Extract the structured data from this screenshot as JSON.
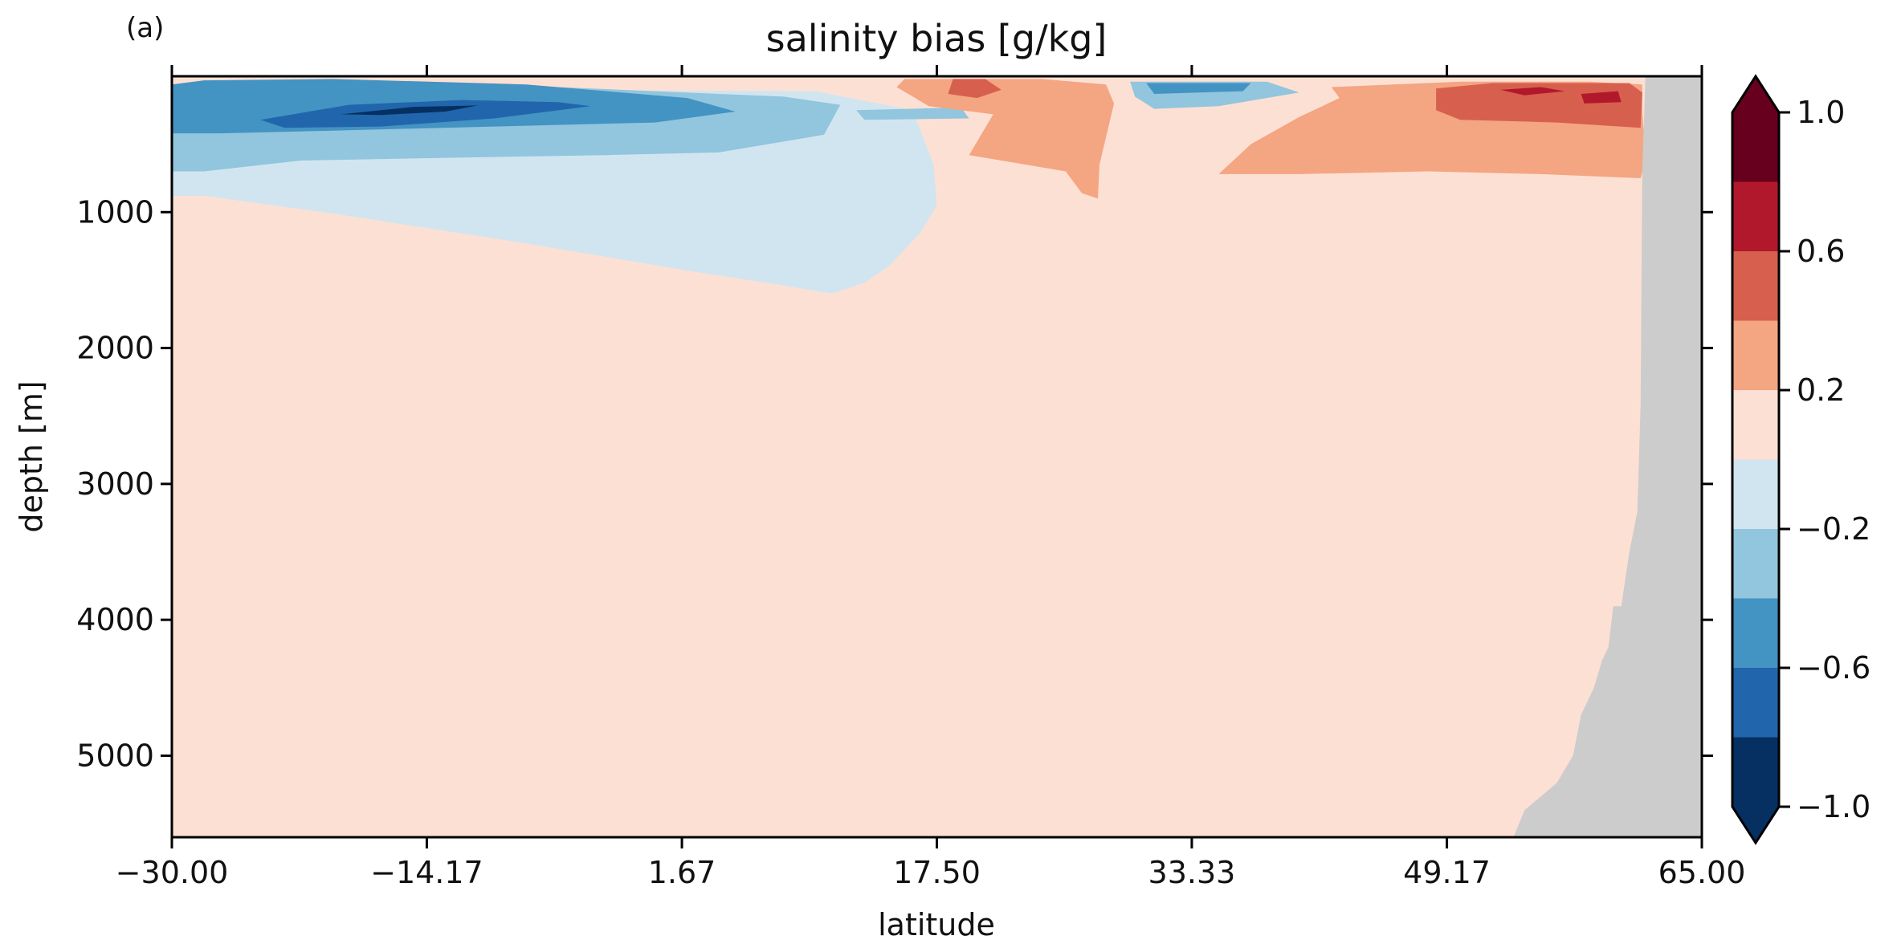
{
  "chart_data": {
    "type": "heatmap",
    "panel_label": "(a)",
    "title": "salinity bias [g/kg]",
    "xlabel": "latitude",
    "ylabel": "depth [m]",
    "xlim": [
      -30.0,
      65.0
    ],
    "ylim": [
      5600,
      0
    ],
    "y_inverted": true,
    "x_ticks": [
      -30.0,
      -14.17,
      1.67,
      17.5,
      33.33,
      49.17,
      65.0
    ],
    "x_tick_labels": [
      "−30.00",
      "−14.17",
      "1.67",
      "17.50",
      "33.33",
      "49.17",
      "65.00"
    ],
    "y_ticks": [
      1000,
      2000,
      3000,
      4000,
      5000
    ],
    "y_tick_labels": [
      "1000",
      "2000",
      "3000",
      "4000",
      "5000"
    ],
    "colorbar": {
      "levels": [
        -1.0,
        -0.8,
        -0.6,
        -0.4,
        -0.2,
        0.0,
        0.2,
        0.4,
        0.6,
        0.8,
        1.0
      ],
      "colors": [
        "#053061",
        "#2166ac",
        "#4393c3",
        "#92c5de",
        "#d1e5f0",
        "#fde0d4",
        "#f4a582",
        "#d6604d",
        "#b2182b",
        "#67001f"
      ],
      "under_color": "#053061",
      "over_color": "#67001f",
      "extend": "both",
      "ticks": [
        -1.0,
        -0.6,
        -0.2,
        0.2,
        0.6,
        1.0
      ],
      "tick_labels": [
        "−1.0",
        "−0.6",
        "−0.2",
        "0.2",
        "0.6",
        "1.0"
      ]
    },
    "land_mask_color": "#cccccc",
    "background_bias_range": [
      0.0,
      0.2
    ],
    "regions": [
      {
        "name": "intermediate-fresh-bias",
        "bin": -0.2,
        "color": "#d1e5f0",
        "points": [
          [
            -30,
            100
          ],
          [
            -10,
            100
          ],
          [
            10,
            110
          ],
          [
            16,
            250
          ],
          [
            17.3,
            650
          ],
          [
            17.5,
            950
          ],
          [
            16.5,
            1150
          ],
          [
            14.5,
            1400
          ],
          [
            13,
            1520
          ],
          [
            11,
            1600
          ],
          [
            8,
            1540
          ],
          [
            2,
            1430
          ],
          [
            -8,
            1230
          ],
          [
            -20,
            1010
          ],
          [
            -28,
            880
          ],
          [
            -30,
            880
          ]
        ]
      },
      {
        "name": "upper-fresh-bias",
        "bin": -0.4,
        "color": "#92c5de",
        "points": [
          [
            -30,
            60
          ],
          [
            -10,
            60
          ],
          [
            8,
            150
          ],
          [
            11.5,
            210
          ],
          [
            10.5,
            430
          ],
          [
            4,
            560
          ],
          [
            -3,
            580
          ],
          [
            -13,
            600
          ],
          [
            -22,
            620
          ],
          [
            -28,
            700
          ],
          [
            -30,
            700
          ]
        ]
      },
      {
        "name": "shallow-fresh-core",
        "bin": -0.6,
        "color": "#4393c3",
        "points": [
          [
            -30,
            60
          ],
          [
            -28,
            30
          ],
          [
            -20,
            20
          ],
          [
            -8,
            60
          ],
          [
            2,
            160
          ],
          [
            5,
            260
          ],
          [
            0,
            340
          ],
          [
            -10,
            370
          ],
          [
            -20,
            400
          ],
          [
            -27,
            420
          ],
          [
            -30,
            420
          ]
        ]
      },
      {
        "name": "strong-fresh-core",
        "bin": -0.8,
        "color": "#2166ac",
        "points": [
          [
            -24.5,
            320
          ],
          [
            -19,
            210
          ],
          [
            -12,
            175
          ],
          [
            -6,
            190
          ],
          [
            -4,
            220
          ],
          [
            -10,
            310
          ],
          [
            -17,
            370
          ],
          [
            -23,
            380
          ]
        ]
      },
      {
        "name": "fresh-extreme",
        "bin": -1.0,
        "color": "#053061",
        "points": [
          [
            -19.5,
            280
          ],
          [
            -15,
            225
          ],
          [
            -11,
            215
          ],
          [
            -13,
            260
          ],
          [
            -17,
            285
          ]
        ]
      },
      {
        "name": "midlatitude-surface-fresh",
        "bin": -0.4,
        "color": "#92c5de",
        "points": [
          [
            29.5,
            40
          ],
          [
            38,
            40
          ],
          [
            40,
            120
          ],
          [
            35,
            220
          ],
          [
            31,
            240
          ],
          [
            29.8,
            150
          ]
        ]
      },
      {
        "name": "midlatitude-surface-fresh-core",
        "bin": -0.6,
        "color": "#4393c3",
        "points": [
          [
            30.5,
            50
          ],
          [
            37,
            50
          ],
          [
            36.5,
            110
          ],
          [
            31,
            130
          ]
        ]
      },
      {
        "name": "shallow-fresh-patch",
        "bin": -0.4,
        "color": "#92c5de",
        "points": [
          [
            12.5,
            250
          ],
          [
            19,
            230
          ],
          [
            19.5,
            310
          ],
          [
            13,
            320
          ]
        ]
      },
      {
        "name": "subtropical-salty-bias",
        "bin": 0.4,
        "color": "#f4a582",
        "points": [
          [
            15.5,
            20
          ],
          [
            24,
            20
          ],
          [
            28,
            60
          ],
          [
            28.5,
            200
          ],
          [
            27.6,
            650
          ],
          [
            27.5,
            900
          ],
          [
            26.5,
            860
          ],
          [
            25.5,
            700
          ],
          [
            23,
            650
          ],
          [
            19.5,
            580
          ],
          [
            21,
            280
          ],
          [
            17,
            220
          ],
          [
            15,
            80
          ]
        ]
      },
      {
        "name": "subtropical-salty-core",
        "bin": 0.6,
        "color": "#d6604d",
        "points": [
          [
            18.5,
            20
          ],
          [
            20.5,
            20
          ],
          [
            21.5,
            100
          ],
          [
            20,
            160
          ],
          [
            18.2,
            130
          ]
        ]
      },
      {
        "name": "subpolar-salty-bias",
        "bin": 0.4,
        "color": "#f4a582",
        "points": [
          [
            42,
            80
          ],
          [
            50,
            40
          ],
          [
            58,
            40
          ],
          [
            61.3,
            60
          ],
          [
            61.3,
            250
          ],
          [
            61.5,
            600
          ],
          [
            61.2,
            750
          ],
          [
            55,
            720
          ],
          [
            48,
            700
          ],
          [
            40,
            720
          ],
          [
            35,
            720
          ],
          [
            37,
            500
          ],
          [
            40,
            300
          ],
          [
            42.5,
            160
          ]
        ]
      },
      {
        "name": "subpolar-salty-core",
        "bin": 0.6,
        "color": "#d6604d",
        "points": [
          [
            48.5,
            90
          ],
          [
            52,
            50
          ],
          [
            60.5,
            50
          ],
          [
            61.3,
            120
          ],
          [
            61.2,
            380
          ],
          [
            56,
            340
          ],
          [
            50,
            320
          ],
          [
            48.5,
            250
          ]
        ]
      },
      {
        "name": "subpolar-salty-extreme",
        "bin": 0.8,
        "color": "#b2182b",
        "points": [
          [
            52.5,
            100
          ],
          [
            55,
            80
          ],
          [
            56.5,
            110
          ],
          [
            54,
            140
          ]
        ]
      },
      {
        "name": "subpolar-salty-extreme-2",
        "bin": 0.8,
        "color": "#b2182b",
        "points": [
          [
            57.5,
            130
          ],
          [
            59.8,
            110
          ],
          [
            60,
            190
          ],
          [
            57.7,
            200
          ]
        ]
      }
    ],
    "land_mask_points": [
      [
        65,
        0
      ],
      [
        61.5,
        0
      ],
      [
        61.3,
        700
      ],
      [
        61.2,
        2400
      ],
      [
        61.0,
        3200
      ],
      [
        60.5,
        3500
      ],
      [
        60.0,
        3900
      ],
      [
        59.5,
        3900
      ],
      [
        59.2,
        4200
      ],
      [
        58.8,
        4300
      ],
      [
        58.3,
        4500
      ],
      [
        57.5,
        4700
      ],
      [
        57.0,
        5000
      ],
      [
        56.0,
        5200
      ],
      [
        55.0,
        5300
      ],
      [
        54.0,
        5400
      ],
      [
        53.3,
        5600
      ],
      [
        65,
        5600
      ]
    ]
  }
}
